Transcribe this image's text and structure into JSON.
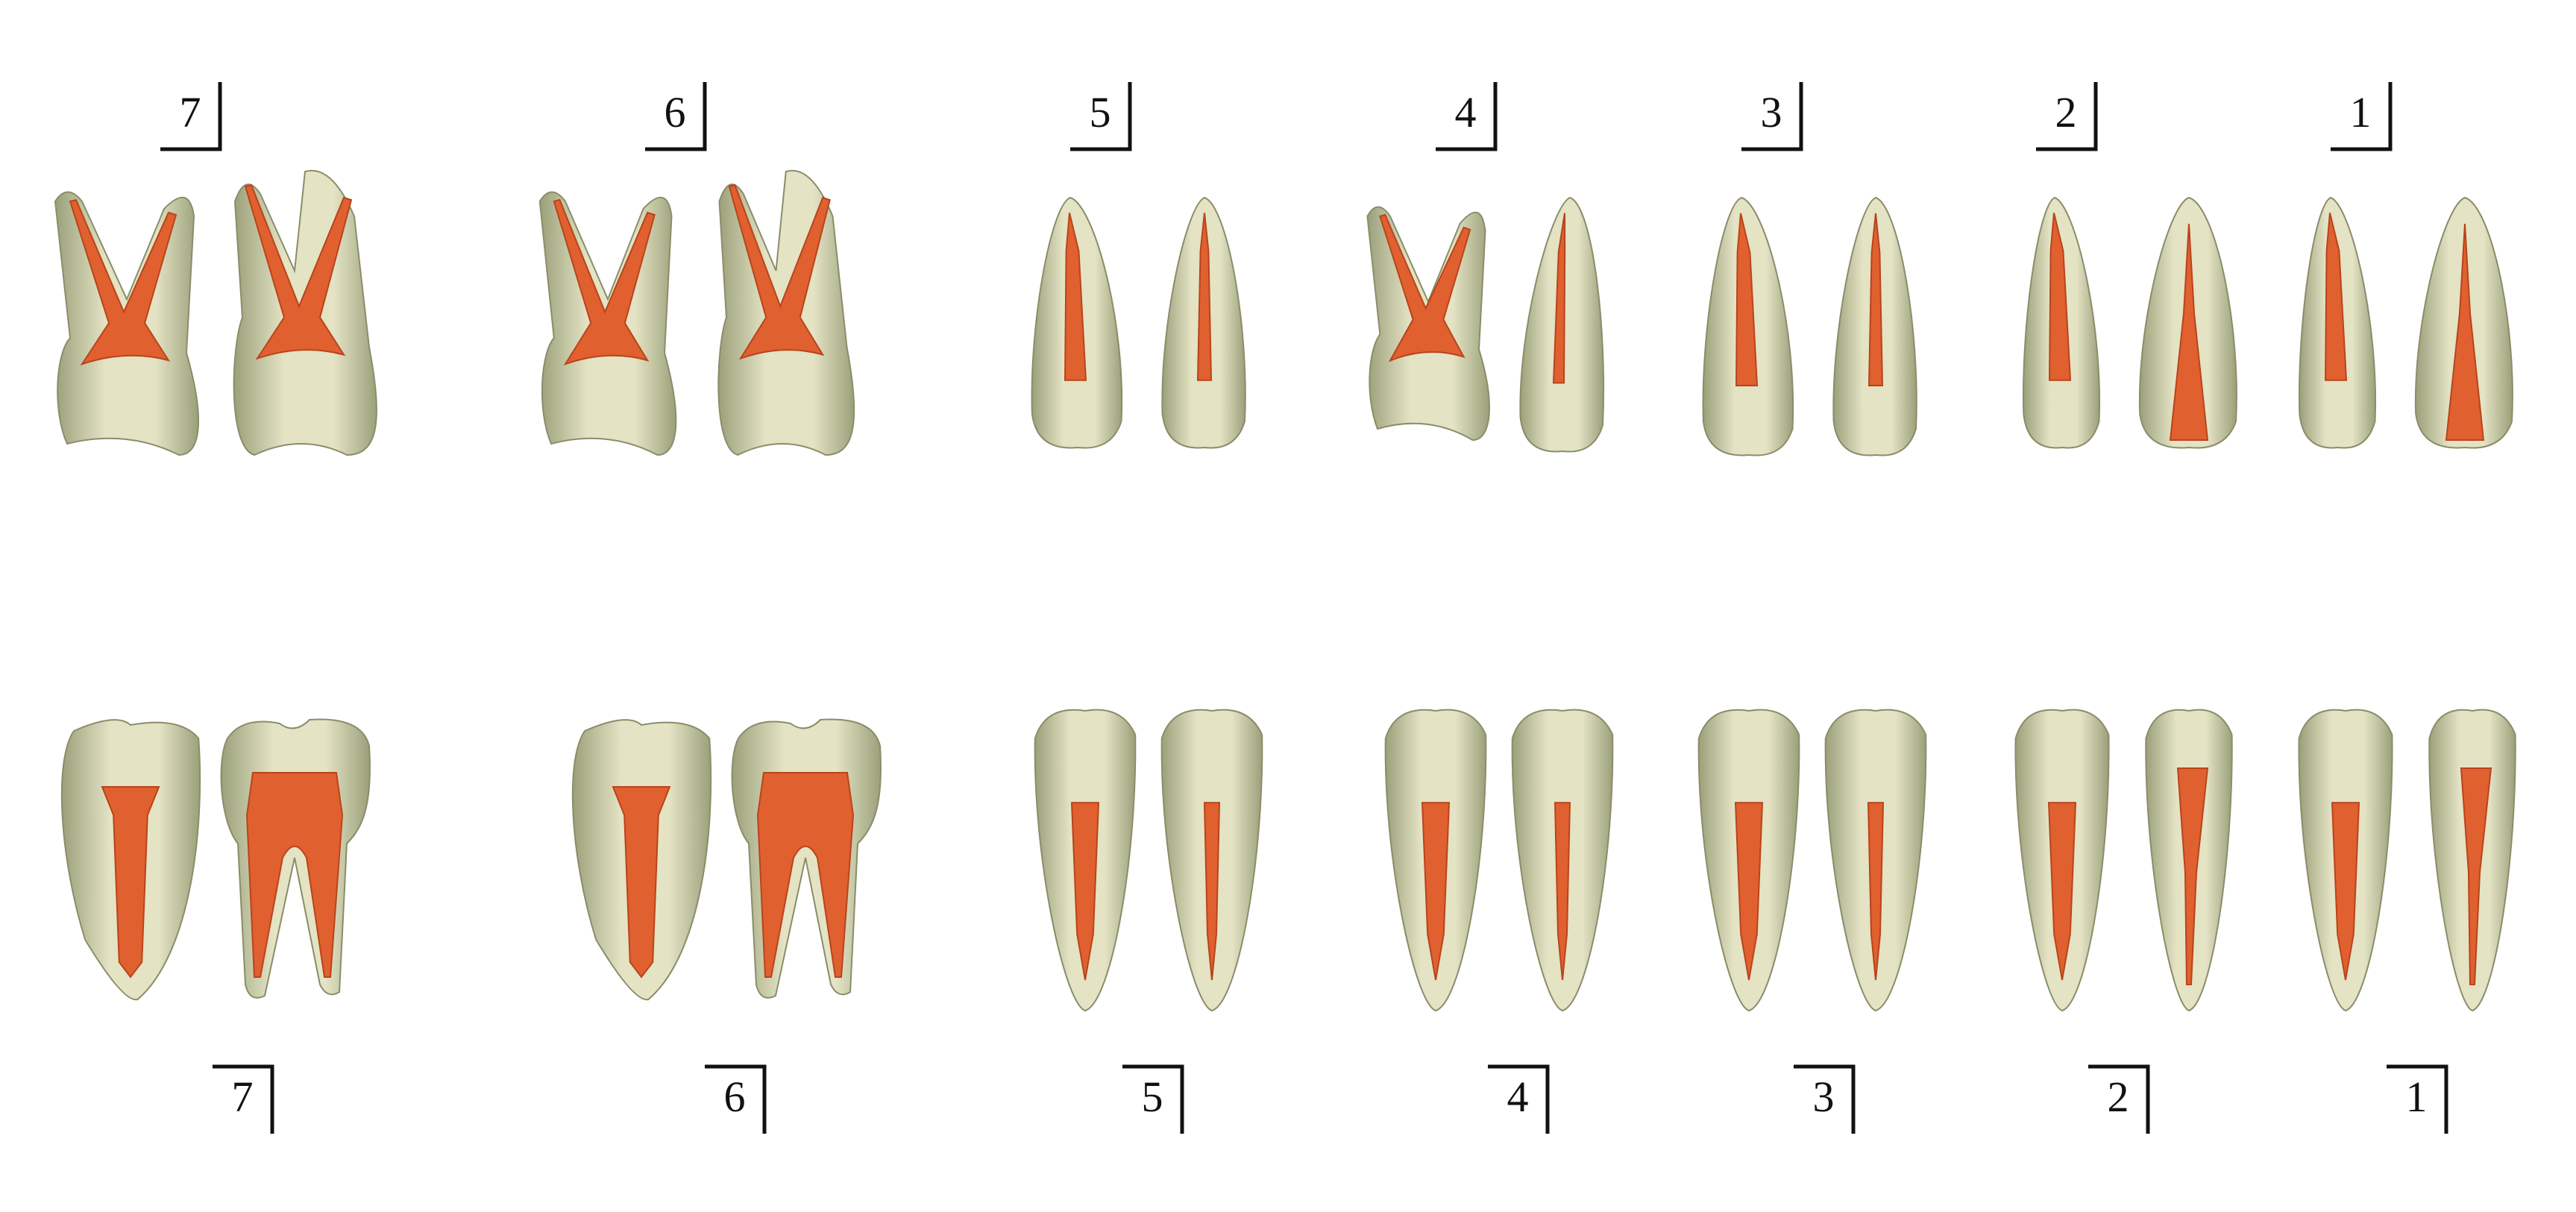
{
  "diagram": {
    "upper_row": {
      "quadrant_symbol": "upper-right bracket (vertical line on right, horizontal line below)",
      "teeth": [
        {
          "number": "7",
          "type": "molar",
          "views": [
            "buccal",
            "mesial"
          ]
        },
        {
          "number": "6",
          "type": "molar",
          "views": [
            "buccal",
            "mesial"
          ]
        },
        {
          "number": "5",
          "type": "premolar",
          "views": [
            "buccal",
            "mesial"
          ]
        },
        {
          "number": "4",
          "type": "premolar-two-root",
          "views": [
            "buccal",
            "mesial"
          ]
        },
        {
          "number": "3",
          "type": "canine",
          "views": [
            "labial",
            "mesial"
          ]
        },
        {
          "number": "2",
          "type": "incisor",
          "views": [
            "labial",
            "mesial"
          ]
        },
        {
          "number": "1",
          "type": "incisor",
          "views": [
            "labial",
            "mesial"
          ]
        }
      ]
    },
    "lower_row": {
      "quadrant_symbol": "lower-right bracket (vertical line on right, horizontal line above)",
      "teeth": [
        {
          "number": "7",
          "type": "molar",
          "views": [
            "mesial",
            "buccal"
          ]
        },
        {
          "number": "6",
          "type": "molar",
          "views": [
            "mesial",
            "buccal"
          ]
        },
        {
          "number": "5",
          "type": "premolar",
          "views": [
            "buccal",
            "mesial"
          ]
        },
        {
          "number": "4",
          "type": "premolar",
          "views": [
            "buccal",
            "mesial"
          ]
        },
        {
          "number": "3",
          "type": "canine",
          "views": [
            "labial",
            "mesial"
          ]
        },
        {
          "number": "2",
          "type": "incisor",
          "views": [
            "labial",
            "mesial"
          ]
        },
        {
          "number": "1",
          "type": "incisor",
          "views": [
            "labial",
            "mesial"
          ]
        }
      ]
    },
    "colors": {
      "tooth_fill": "#e4e3c4",
      "tooth_shade": "#9aa07a",
      "tooth_outline": "#8a8d6a",
      "pulp": "#e0602f",
      "pulp_edge": "#b8441c",
      "label": "#111111",
      "background": "#ffffff"
    }
  }
}
